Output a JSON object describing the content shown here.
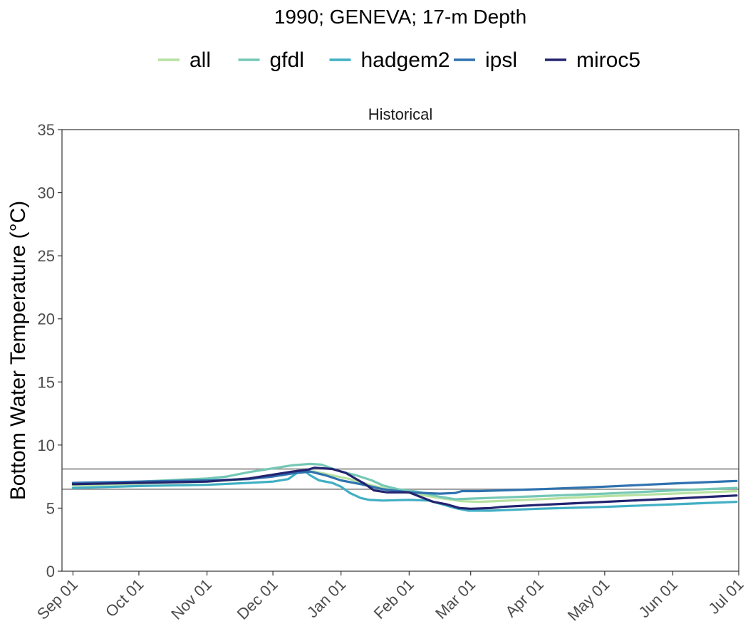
{
  "chart_data": {
    "type": "line",
    "title": "1990; GENEVA; 17-m Depth",
    "facet_label": "Historical",
    "xlabel": "",
    "ylabel": "Bottom Water Temperature (°C)",
    "ylim": [
      0,
      35
    ],
    "y_ticks": [
      0,
      5,
      10,
      15,
      20,
      25,
      30,
      35
    ],
    "xlim": [
      "1989-08-27",
      "1990-07-01"
    ],
    "x_ticks": [
      {
        "date": "1989-09-01",
        "label": "Sep 01"
      },
      {
        "date": "1989-10-01",
        "label": "Oct 01"
      },
      {
        "date": "1989-11-01",
        "label": "Nov 01"
      },
      {
        "date": "1989-12-01",
        "label": "Dec 01"
      },
      {
        "date": "1990-01-01",
        "label": "Jan 01"
      },
      {
        "date": "1990-02-01",
        "label": "Feb 01"
      },
      {
        "date": "1990-03-01",
        "label": "Mar 01"
      },
      {
        "date": "1990-04-01",
        "label": "Apr 01"
      },
      {
        "date": "1990-05-01",
        "label": "May 01"
      },
      {
        "date": "1990-06-01",
        "label": "Jun 01"
      },
      {
        "date": "1990-07-01",
        "label": "Jul 01"
      }
    ],
    "hlines": [
      8.1,
      6.5
    ],
    "hline_color": "#9a9a9a",
    "grid": false,
    "legend_position": "top",
    "series": [
      {
        "name": "all",
        "color": "#b7e1a1",
        "points": [
          [
            "1989-09-01",
            6.8
          ],
          [
            "1989-10-01",
            6.95
          ],
          [
            "1989-11-01",
            7.1
          ],
          [
            "1989-11-20",
            7.3
          ],
          [
            "1989-12-01",
            7.6
          ],
          [
            "1989-12-10",
            7.9
          ],
          [
            "1989-12-20",
            7.9
          ],
          [
            "1989-12-28",
            7.6
          ],
          [
            "1990-01-05",
            7.3
          ],
          [
            "1990-01-15",
            6.8
          ],
          [
            "1990-01-25",
            6.4
          ],
          [
            "1990-02-05",
            6.1
          ],
          [
            "1990-02-15",
            5.8
          ],
          [
            "1990-02-25",
            5.55
          ],
          [
            "1990-03-05",
            5.5
          ],
          [
            "1990-04-01",
            5.7
          ],
          [
            "1990-05-01",
            5.95
          ],
          [
            "1990-06-01",
            6.15
          ],
          [
            "1990-06-30",
            6.35
          ]
        ]
      },
      {
        "name": "gfdl",
        "color": "#74c8b5",
        "points": [
          [
            "1989-09-01",
            6.9
          ],
          [
            "1989-10-01",
            7.1
          ],
          [
            "1989-11-01",
            7.35
          ],
          [
            "1989-11-10",
            7.5
          ],
          [
            "1989-11-20",
            7.85
          ],
          [
            "1989-12-01",
            8.15
          ],
          [
            "1989-12-10",
            8.4
          ],
          [
            "1989-12-18",
            8.5
          ],
          [
            "1989-12-23",
            8.45
          ],
          [
            "1989-12-27",
            8.2
          ],
          [
            "1990-01-01",
            7.9
          ],
          [
            "1990-01-08",
            7.6
          ],
          [
            "1990-01-15",
            7.2
          ],
          [
            "1990-01-20",
            6.8
          ],
          [
            "1990-01-27",
            6.5
          ],
          [
            "1990-02-05",
            6.3
          ],
          [
            "1990-02-15",
            5.9
          ],
          [
            "1990-02-22",
            5.7
          ],
          [
            "1990-03-01",
            5.75
          ],
          [
            "1990-04-01",
            5.95
          ],
          [
            "1990-05-01",
            6.15
          ],
          [
            "1990-06-01",
            6.4
          ],
          [
            "1990-06-30",
            6.6
          ]
        ]
      },
      {
        "name": "hadgem2",
        "color": "#41afc4",
        "points": [
          [
            "1989-09-01",
            6.6
          ],
          [
            "1989-10-01",
            6.75
          ],
          [
            "1989-11-01",
            6.85
          ],
          [
            "1989-11-20",
            7.0
          ],
          [
            "1989-12-01",
            7.1
          ],
          [
            "1989-12-08",
            7.3
          ],
          [
            "1989-12-12",
            7.8
          ],
          [
            "1989-12-15",
            8.0
          ],
          [
            "1989-12-18",
            7.6
          ],
          [
            "1989-12-22",
            7.2
          ],
          [
            "1989-12-28",
            7.0
          ],
          [
            "1990-01-01",
            6.7
          ],
          [
            "1990-01-05",
            6.2
          ],
          [
            "1990-01-10",
            5.8
          ],
          [
            "1990-01-14",
            5.65
          ],
          [
            "1990-01-20",
            5.6
          ],
          [
            "1990-02-01",
            5.65
          ],
          [
            "1990-02-10",
            5.6
          ],
          [
            "1990-02-16",
            5.3
          ],
          [
            "1990-02-22",
            5.0
          ],
          [
            "1990-02-28",
            4.8
          ],
          [
            "1990-03-10",
            4.8
          ],
          [
            "1990-04-01",
            4.95
          ],
          [
            "1990-05-01",
            5.1
          ],
          [
            "1990-06-01",
            5.3
          ],
          [
            "1990-06-30",
            5.5
          ]
        ]
      },
      {
        "name": "ipsl",
        "color": "#2f72b0",
        "points": [
          [
            "1989-09-01",
            7.0
          ],
          [
            "1989-10-01",
            7.1
          ],
          [
            "1989-11-01",
            7.2
          ],
          [
            "1989-11-20",
            7.3
          ],
          [
            "1989-12-01",
            7.5
          ],
          [
            "1989-12-10",
            7.75
          ],
          [
            "1989-12-18",
            7.9
          ],
          [
            "1989-12-25",
            7.6
          ],
          [
            "1990-01-01",
            7.2
          ],
          [
            "1990-01-10",
            6.9
          ],
          [
            "1990-01-20",
            6.5
          ],
          [
            "1990-02-01",
            6.25
          ],
          [
            "1990-02-15",
            6.15
          ],
          [
            "1990-02-22",
            6.2
          ],
          [
            "1990-02-25",
            6.35
          ],
          [
            "1990-03-05",
            6.35
          ],
          [
            "1990-04-01",
            6.5
          ],
          [
            "1990-05-01",
            6.7
          ],
          [
            "1990-06-01",
            6.95
          ],
          [
            "1990-06-30",
            7.15
          ]
        ]
      },
      {
        "name": "miroc5",
        "color": "#23236f",
        "points": [
          [
            "1989-09-01",
            6.9
          ],
          [
            "1989-10-01",
            7.0
          ],
          [
            "1989-11-01",
            7.1
          ],
          [
            "1989-11-20",
            7.35
          ],
          [
            "1989-12-01",
            7.65
          ],
          [
            "1989-12-10",
            7.9
          ],
          [
            "1989-12-17",
            8.05
          ],
          [
            "1989-12-20",
            8.2
          ],
          [
            "1989-12-28",
            8.1
          ],
          [
            "1990-01-03",
            7.8
          ],
          [
            "1990-01-08",
            7.3
          ],
          [
            "1990-01-12",
            6.9
          ],
          [
            "1990-01-16",
            6.4
          ],
          [
            "1990-01-22",
            6.25
          ],
          [
            "1990-02-01",
            6.25
          ],
          [
            "1990-02-06",
            5.9
          ],
          [
            "1990-02-12",
            5.5
          ],
          [
            "1990-02-18",
            5.3
          ],
          [
            "1990-02-24",
            5.0
          ],
          [
            "1990-03-01",
            4.95
          ],
          [
            "1990-03-10",
            5.0
          ],
          [
            "1990-03-15",
            5.1
          ],
          [
            "1990-04-01",
            5.25
          ],
          [
            "1990-05-01",
            5.5
          ],
          [
            "1990-06-01",
            5.75
          ],
          [
            "1990-06-30",
            6.0
          ]
        ]
      }
    ]
  }
}
